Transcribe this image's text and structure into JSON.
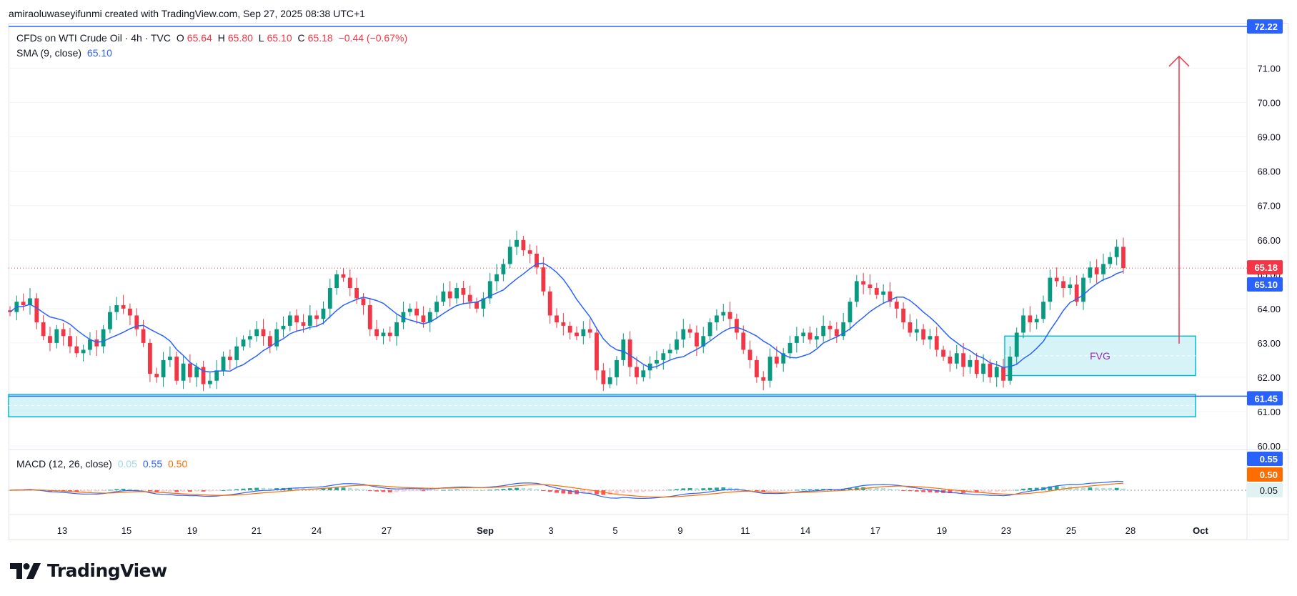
{
  "attribution": "amiraoluwaseyifunmi created with TradingView.com, Sep 27, 2025 08:38 UTC+1",
  "legend": {
    "symbol": "CFDs on WTI Crude Oil · 4h · TVC",
    "open_label": "O",
    "open": "65.64",
    "high_label": "H",
    "high": "65.80",
    "low_label": "L",
    "low": "65.10",
    "close_label": "C",
    "close": "65.18",
    "change": "−0.44 (−0.67%)",
    "sma_label": "SMA (9, close)",
    "sma_value": "65.10",
    "macd_label": "MACD (12, 26, close)",
    "macd_hist": "0.05",
    "macd_line": "0.55",
    "macd_signal": "0.50"
  },
  "brand": {
    "logo_text": "TradingView"
  },
  "colors": {
    "up": "#089981",
    "down": "#f23645",
    "sma": "#2962ff",
    "macd_line": "#2962ff",
    "signal_line": "#ff6d00",
    "zone_fill": "#c8f0f4",
    "zone_border": "#00bcd4",
    "level_line": "#2962ff",
    "arrow": "#f23645",
    "fvg_text": "#9c27b0"
  },
  "chart_data": {
    "type": "candlestick",
    "symbol": "CFDs on WTI Crude Oil",
    "interval": "4h",
    "price_axis": {
      "min": 60,
      "max": 72.22,
      "ticks": [
        "60.00",
        "61.00",
        "62.00",
        "63.00",
        "64.00",
        "65.00",
        "66.00",
        "67.00",
        "68.00",
        "69.00",
        "70.00",
        "71.00"
      ]
    },
    "x_ticks": [
      "13",
      "15",
      "19",
      "21",
      "24",
      "27",
      "Sep",
      "3",
      "5",
      "9",
      "11",
      "14",
      "17",
      "19",
      "23",
      "25",
      "28",
      "Oct"
    ],
    "price_labels": [
      {
        "text": "72.22",
        "value": 72.22,
        "color": "#2962ff"
      },
      {
        "text": "65.18",
        "value": 65.18,
        "color": "#f23645"
      },
      {
        "text": "65.10",
        "value": 65.1,
        "color": "#2962ff"
      },
      {
        "text": "61.45",
        "value": 61.45,
        "color": "#2962ff"
      }
    ],
    "horizontal_levels": [
      72.22,
      61.45
    ],
    "zones": [
      {
        "name": "support",
        "from": 60.85,
        "to": 61.5
      },
      {
        "name": "FVG",
        "label": "FVG",
        "from": 62.05,
        "to": 63.2
      }
    ],
    "target_arrow": {
      "from": 62.98,
      "to": 71.35
    },
    "close_close_series": [
      63.9,
      64.2,
      64.1,
      64.3,
      63.6,
      63.2,
      63.0,
      63.4,
      63.2,
      62.9,
      62.7,
      62.8,
      63.1,
      62.9,
      63.4,
      63.9,
      64.1,
      64.0,
      63.8,
      63.4,
      63.0,
      62.1,
      62.0,
      62.5,
      62.6,
      61.9,
      62.4,
      62.0,
      62.3,
      61.8,
      61.9,
      62.2,
      62.6,
      62.5,
      62.9,
      63.1,
      63.2,
      63.4,
      63.2,
      62.9,
      63.4,
      63.5,
      63.8,
      63.6,
      63.5,
      63.8,
      63.7,
      64.0,
      64.6,
      65.0,
      64.9,
      64.6,
      64.3,
      64.1,
      63.4,
      63.2,
      63.3,
      63.2,
      63.6,
      63.9,
      64.0,
      63.8,
      63.6,
      63.9,
      64.2,
      64.5,
      64.3,
      64.6,
      64.4,
      64.2,
      64.0,
      64.3,
      64.8,
      65.0,
      65.3,
      65.8,
      66.0,
      65.7,
      65.6,
      65.2,
      64.5,
      63.8,
      63.6,
      63.5,
      63.3,
      63.2,
      63.4,
      63.3,
      62.2,
      61.8,
      62.0,
      62.5,
      63.1,
      62.3,
      62.0,
      62.2,
      62.4,
      62.5,
      62.7,
      62.8,
      63.1,
      63.4,
      63.3,
      62.9,
      63.2,
      63.6,
      63.8,
      63.9,
      63.7,
      63.3,
      62.8,
      62.5,
      62.0,
      61.9,
      62.6,
      62.4,
      62.7,
      63.0,
      63.2,
      63.3,
      63.1,
      63.2,
      63.5,
      63.4,
      63.2,
      63.6,
      64.2,
      64.8,
      64.7,
      64.6,
      64.4,
      64.5,
      64.2,
      64.0,
      63.6,
      63.3,
      63.4,
      63.1,
      63.2,
      62.8,
      62.6,
      62.4,
      62.7,
      62.3,
      62.5,
      62.1,
      62.4,
      62.0,
      62.3,
      61.9,
      62.6,
      63.3,
      63.8,
      63.6,
      63.7,
      64.2,
      64.9,
      64.8,
      64.6,
      64.7,
      64.2,
      64.9,
      65.2,
      65.0,
      65.3,
      65.5,
      65.8,
      65.18
    ],
    "sma": {
      "name": "SMA (9, close)",
      "period": 9
    },
    "macd": {
      "name": "MACD (12, 26, close)",
      "histogram": 0.05,
      "macd": 0.55,
      "signal": 0.5,
      "labels": [
        {
          "text": "0.55",
          "color": "#2962ff"
        },
        {
          "text": "0.50",
          "color": "#ff6d00"
        },
        {
          "text": "0.05",
          "color": "#b2dfdb"
        }
      ]
    }
  }
}
